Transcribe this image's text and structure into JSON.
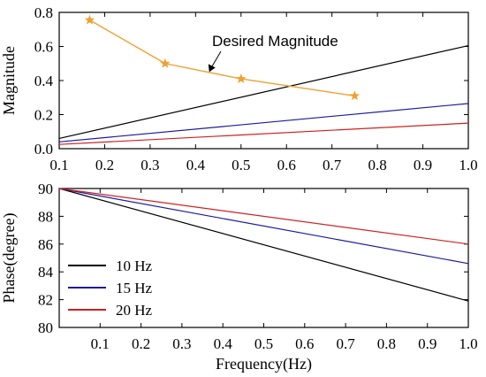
{
  "chart_data": [
    {
      "type": "line",
      "ylabel": "Magnitude",
      "xlim": [
        0.1,
        1.0
      ],
      "ylim": [
        0.0,
        0.8
      ],
      "x_ticks": [
        "0.1",
        "0.2",
        "0.3",
        "0.4",
        "0.5",
        "0.6",
        "0.7",
        "0.8",
        "0.9",
        "1.0"
      ],
      "y_ticks": [
        "0.0",
        "0.2",
        "0.4",
        "0.6",
        "0.8"
      ],
      "grid": false,
      "series": [
        {
          "name": "10 Hz",
          "color": "#000000",
          "marker": "none",
          "x": [
            0.1,
            1.0
          ],
          "y": [
            0.06,
            0.605
          ]
        },
        {
          "name": "15 Hz",
          "color": "#1a1aa0",
          "marker": "none",
          "x": [
            0.1,
            1.0
          ],
          "y": [
            0.04,
            0.265
          ]
        },
        {
          "name": "20 Hz",
          "color": "#d02020",
          "marker": "none",
          "x": [
            0.1,
            1.0
          ],
          "y": [
            0.025,
            0.15
          ]
        },
        {
          "name": "Desired Magnitude",
          "color": "#f0a030",
          "marker": "star",
          "x": [
            0.167,
            0.333,
            0.5,
            0.75
          ],
          "y": [
            0.755,
            0.5,
            0.41,
            0.31
          ]
        }
      ],
      "annotations": [
        {
          "text": "Desired Magnitude",
          "points_to_series": "Desired Magnitude",
          "target_x": 0.43,
          "target_y": 0.45
        }
      ]
    },
    {
      "type": "line",
      "xlabel": "Frequency(Hz)",
      "ylabel": "Phase(degree)",
      "xlim": [
        0.0,
        1.0
      ],
      "ylim": [
        80,
        90
      ],
      "x_ticks": [
        "0.1",
        "0.2",
        "0.3",
        "0.4",
        "0.5",
        "0.6",
        "0.7",
        "0.8",
        "0.9",
        "1.0"
      ],
      "y_ticks": [
        "80",
        "82",
        "84",
        "86",
        "88",
        "90"
      ],
      "grid": false,
      "legend": {
        "placement": "lower-left"
      },
      "series": [
        {
          "name": "10 Hz",
          "color": "#000000",
          "x": [
            0.0,
            1.0
          ],
          "y": [
            90.0,
            81.9
          ]
        },
        {
          "name": "15 Hz",
          "color": "#1a1aa0",
          "x": [
            0.0,
            1.0
          ],
          "y": [
            90.0,
            84.6
          ]
        },
        {
          "name": "20 Hz",
          "color": "#d02020",
          "x": [
            0.0,
            1.0
          ],
          "y": [
            90.0,
            86.0
          ]
        }
      ]
    }
  ]
}
